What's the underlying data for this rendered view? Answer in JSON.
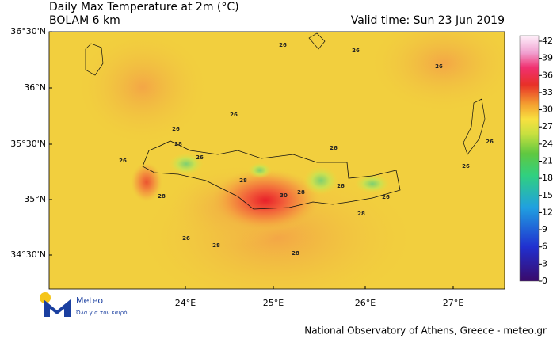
{
  "title": "Daily Max Temperature at 2m (°C)",
  "subtitle": "BOLAM 6 km",
  "valid_time": "Valid time: Sun 23 Jun 2019",
  "lat_labels": [
    "36°30'N",
    "36°N",
    "35°30'N",
    "35°N",
    "34°30'N"
  ],
  "lon_labels": [
    "24°E",
    "25°E",
    "26°E",
    "27°E"
  ],
  "colorbar": {
    "ticks": [
      0,
      3,
      6,
      9,
      12,
      15,
      18,
      21,
      24,
      27,
      30,
      33,
      36,
      39,
      42
    ]
  },
  "contour_labels": [
    "26",
    "26",
    "26",
    "26",
    "26",
    "26",
    "26",
    "26",
    "26",
    "28",
    "26",
    "28",
    "26",
    "30",
    "28",
    "26",
    "28",
    "28",
    "28",
    "26",
    "28"
  ],
  "logo": {
    "name": "Meteo",
    "tagline": "Όλα για τον καιρό"
  },
  "footer": "National Observatory of Athens, Greece - meteo.gr"
}
